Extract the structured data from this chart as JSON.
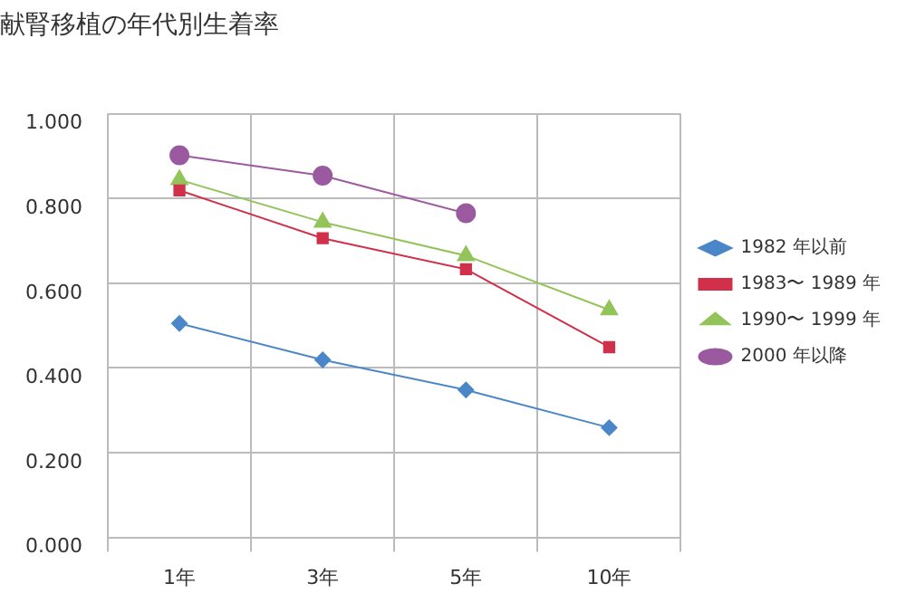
{
  "chart_data": {
    "type": "line",
    "title": "献腎移植の年代別生着率",
    "categories": [
      "1年",
      "3年",
      "5年",
      "10年"
    ],
    "series": [
      {
        "name": "1982 年以前",
        "color": "#4a86c8",
        "marker": "diamond",
        "values": [
          0.505,
          0.419,
          0.348,
          0.259
        ]
      },
      {
        "name": "1983〜 1989 年",
        "color": "#d0304a",
        "marker": "square",
        "values": [
          0.819,
          0.706,
          0.633,
          0.449
        ]
      },
      {
        "name": "1990〜 1999 年",
        "color": "#93c45a",
        "marker": "triangle",
        "values": [
          0.844,
          0.744,
          0.665,
          0.537
        ]
      },
      {
        "name": "2000 年以降",
        "color": "#9b59a0",
        "marker": "circle",
        "values": [
          0.902,
          0.854,
          0.765,
          null
        ]
      }
    ],
    "ylim": [
      0,
      1
    ],
    "yticks": [
      {
        "value": 0,
        "label": "0.000"
      },
      {
        "value": 0.2,
        "label": "0.200"
      },
      {
        "value": 0.4,
        "label": "0.400"
      },
      {
        "value": 0.6,
        "label": "0.600"
      },
      {
        "value": 0.8,
        "label": "0.800"
      },
      {
        "value": 1,
        "label": "1.000"
      }
    ],
    "grid": true,
    "legend": "right",
    "line_style": "solid"
  }
}
